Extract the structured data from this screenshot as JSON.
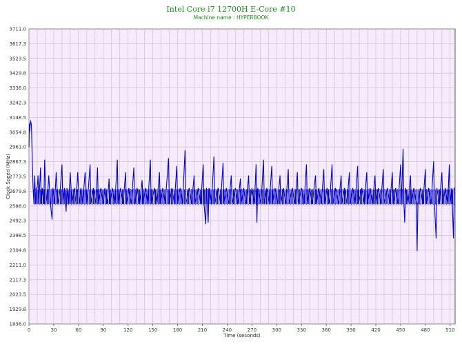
{
  "chart_data": {
    "type": "line",
    "title": "Intel Core i7 12700H E-Core #10",
    "subtitle": "Machine name : HYPERBOOK",
    "xlabel": "Time (seconds)",
    "ylabel": "Clock Speed (MHz)",
    "xlim": [
      0,
      516
    ],
    "ylim": [
      1836.0,
      3711.0
    ],
    "x_ticks": [
      0,
      30,
      60,
      90,
      120,
      150,
      180,
      210,
      240,
      270,
      300,
      330,
      360,
      390,
      420,
      450,
      480,
      510
    ],
    "y_ticks": [
      "3711.0",
      "3617.3",
      "3523.5",
      "3429.8",
      "3336.0",
      "3242.3",
      "3148.5",
      "3054.8",
      "2961.0",
      "2867.3",
      "2773.5",
      "2679.8",
      "2586.0",
      "2492.3",
      "2398.5",
      "2304.8",
      "2211.0",
      "2117.3",
      "2023.5",
      "1929.8",
      "1836.0"
    ],
    "grid": true,
    "colors": {
      "background": "#f5ebfa",
      "grid": "#c9b8cf",
      "line": "#0000cc",
      "title": "#1e8a1e"
    },
    "series": [
      {
        "baseline_high": 2691,
        "baseline_low": 2597,
        "points": [
          [
            0,
            2960
          ],
          [
            0.5,
            3110
          ],
          [
            1,
            3060
          ],
          [
            2,
            3130
          ],
          [
            3,
            3100
          ],
          [
            4,
            2880
          ],
          [
            5,
            2700
          ],
          [
            6,
            2600
          ],
          [
            7,
            2780
          ],
          [
            8,
            2600
          ],
          [
            9,
            2700
          ],
          [
            10,
            2700
          ],
          [
            11,
            2780
          ],
          [
            12,
            2600
          ],
          [
            14,
            2830
          ],
          [
            15,
            2600
          ],
          [
            16,
            2700
          ],
          [
            18,
            2600
          ],
          [
            19,
            2880
          ],
          [
            20,
            2700
          ],
          [
            22,
            2600
          ],
          [
            24,
            2780
          ],
          [
            26,
            2600
          ],
          [
            28,
            2500
          ],
          [
            29,
            2700
          ],
          [
            31,
            2600
          ],
          [
            33,
            2800
          ],
          [
            35,
            2600
          ],
          [
            38,
            2700
          ],
          [
            40,
            2850
          ],
          [
            41,
            2600
          ],
          [
            43,
            2700
          ],
          [
            45,
            2550
          ],
          [
            46,
            2700
          ],
          [
            48,
            2600
          ],
          [
            50,
            2800
          ],
          [
            52,
            2600
          ],
          [
            55,
            2700
          ],
          [
            57,
            2600
          ],
          [
            59,
            2800
          ],
          [
            61,
            2600
          ],
          [
            63,
            2700
          ],
          [
            65,
            2600
          ],
          [
            68,
            2800
          ],
          [
            70,
            2600
          ],
          [
            72,
            2700
          ],
          [
            74,
            2850
          ],
          [
            75,
            2600
          ],
          [
            78,
            2700
          ],
          [
            81,
            2600
          ],
          [
            83,
            2830
          ],
          [
            84,
            2600
          ],
          [
            87,
            2700
          ],
          [
            90,
            2600
          ],
          [
            92,
            2700
          ],
          [
            95,
            2600
          ],
          [
            97,
            2760
          ],
          [
            98,
            2600
          ],
          [
            101,
            2700
          ],
          [
            104,
            2600
          ],
          [
            107,
            2880
          ],
          [
            108,
            2600
          ],
          [
            111,
            2700
          ],
          [
            114,
            2600
          ],
          [
            117,
            2800
          ],
          [
            118,
            2600
          ],
          [
            121,
            2700
          ],
          [
            124,
            2600
          ],
          [
            127,
            2830
          ],
          [
            128,
            2600
          ],
          [
            131,
            2700
          ],
          [
            134,
            2600
          ],
          [
            137,
            2750
          ],
          [
            138,
            2600
          ],
          [
            141,
            2700
          ],
          [
            144,
            2600
          ],
          [
            147,
            2880
          ],
          [
            148,
            2600
          ],
          [
            152,
            2700
          ],
          [
            155,
            2600
          ],
          [
            158,
            2800
          ],
          [
            159,
            2600
          ],
          [
            162,
            2700
          ],
          [
            165,
            2600
          ],
          [
            169,
            2890
          ],
          [
            170,
            2600
          ],
          [
            173,
            2700
          ],
          [
            176,
            2600
          ],
          [
            179,
            2840
          ],
          [
            180,
            2600
          ],
          [
            183,
            2700
          ],
          [
            186,
            2600
          ],
          [
            189,
            2940
          ],
          [
            190,
            2600
          ],
          [
            194,
            2700
          ],
          [
            197,
            2600
          ],
          [
            200,
            2780
          ],
          [
            201,
            2600
          ],
          [
            205,
            2700
          ],
          [
            208,
            2600
          ],
          [
            211,
            2850
          ],
          [
            212,
            2600
          ],
          [
            214,
            2470
          ],
          [
            215,
            2700
          ],
          [
            217,
            2480
          ],
          [
            218,
            2700
          ],
          [
            221,
            2600
          ],
          [
            224,
            2900
          ],
          [
            225,
            2600
          ],
          [
            229,
            2700
          ],
          [
            232,
            2600
          ],
          [
            235,
            2860
          ],
          [
            236,
            2600
          ],
          [
            239,
            2700
          ],
          [
            242,
            2600
          ],
          [
            245,
            2780
          ],
          [
            246,
            2600
          ],
          [
            250,
            2700
          ],
          [
            253,
            2600
          ],
          [
            256,
            2760
          ],
          [
            257,
            2600
          ],
          [
            260,
            2700
          ],
          [
            263,
            2600
          ],
          [
            266,
            2780
          ],
          [
            267,
            2600
          ],
          [
            270,
            2700
          ],
          [
            273,
            2600
          ],
          [
            275,
            2850
          ],
          [
            276,
            2480
          ],
          [
            277,
            2700
          ],
          [
            281,
            2600
          ],
          [
            284,
            2880
          ],
          [
            285,
            2600
          ],
          [
            288,
            2700
          ],
          [
            291,
            2600
          ],
          [
            294,
            2840
          ],
          [
            295,
            2600
          ],
          [
            298,
            2700
          ],
          [
            301,
            2600
          ],
          [
            304,
            2780
          ],
          [
            305,
            2600
          ],
          [
            308,
            2700
          ],
          [
            311,
            2600
          ],
          [
            314,
            2820
          ],
          [
            315,
            2600
          ],
          [
            319,
            2700
          ],
          [
            322,
            2600
          ],
          [
            325,
            2800
          ],
          [
            326,
            2600
          ],
          [
            330,
            2700
          ],
          [
            333,
            2600
          ],
          [
            336,
            2850
          ],
          [
            337,
            2600
          ],
          [
            340,
            2700
          ],
          [
            343,
            2600
          ],
          [
            347,
            2780
          ],
          [
            348,
            2600
          ],
          [
            351,
            2700
          ],
          [
            354,
            2600
          ],
          [
            357,
            2820
          ],
          [
            358,
            2600
          ],
          [
            361,
            2700
          ],
          [
            364,
            2600
          ],
          [
            367,
            2850
          ],
          [
            368,
            2600
          ],
          [
            371,
            2700
          ],
          [
            375,
            2600
          ],
          [
            378,
            2780
          ],
          [
            379,
            2600
          ],
          [
            382,
            2700
          ],
          [
            385,
            2600
          ],
          [
            388,
            2800
          ],
          [
            389,
            2600
          ],
          [
            392,
            2700
          ],
          [
            395,
            2600
          ],
          [
            398,
            2840
          ],
          [
            399,
            2600
          ],
          [
            403,
            2700
          ],
          [
            406,
            2600
          ],
          [
            409,
            2800
          ],
          [
            410,
            2600
          ],
          [
            413,
            2700
          ],
          [
            416,
            2600
          ],
          [
            419,
            2780
          ],
          [
            420,
            2600
          ],
          [
            423,
            2700
          ],
          [
            426,
            2600
          ],
          [
            429,
            2820
          ],
          [
            430,
            2600
          ],
          [
            434,
            2700
          ],
          [
            437,
            2600
          ],
          [
            440,
            2800
          ],
          [
            441,
            2600
          ],
          [
            444,
            2700
          ],
          [
            447,
            2600
          ],
          [
            450,
            2850
          ],
          [
            451,
            2600
          ],
          [
            453,
            2950
          ],
          [
            454,
            2600
          ],
          [
            455,
            2480
          ],
          [
            456,
            2700
          ],
          [
            459,
            2600
          ],
          [
            462,
            2780
          ],
          [
            463,
            2600
          ],
          [
            466,
            2700
          ],
          [
            469,
            2600
          ],
          [
            470,
            2300
          ],
          [
            471,
            2600
          ],
          [
            474,
            2700
          ],
          [
            477,
            2600
          ],
          [
            480,
            2820
          ],
          [
            481,
            2600
          ],
          [
            484,
            2700
          ],
          [
            487,
            2600
          ],
          [
            490,
            2870
          ],
          [
            491,
            2600
          ],
          [
            493,
            2380
          ],
          [
            494,
            2700
          ],
          [
            497,
            2600
          ],
          [
            500,
            2800
          ],
          [
            501,
            2600
          ],
          [
            504,
            2700
          ],
          [
            507,
            2600
          ],
          [
            509,
            2850
          ],
          [
            510,
            2600
          ],
          [
            512,
            2700
          ],
          [
            514,
            2380
          ],
          [
            515,
            2700
          ],
          [
            516,
            2700
          ]
        ]
      }
    ]
  }
}
